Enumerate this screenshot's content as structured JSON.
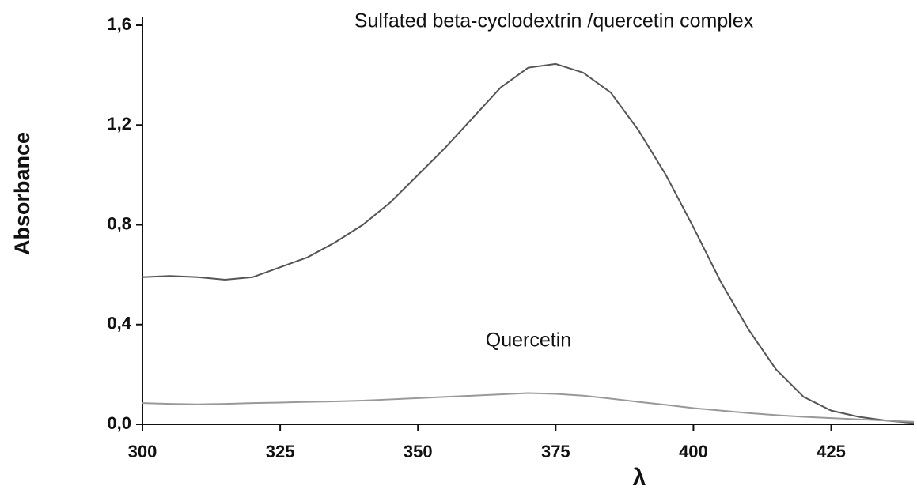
{
  "chart_data": {
    "type": "line",
    "y_label": "Absorbance",
    "x_label": "λ",
    "x": [
      300,
      305,
      310,
      315,
      320,
      325,
      330,
      335,
      340,
      345,
      350,
      355,
      360,
      365,
      370,
      375,
      380,
      385,
      390,
      395,
      400,
      405,
      410,
      415,
      420,
      425,
      430,
      435,
      440
    ],
    "series": [
      {
        "name": "Sulfated beta-cyclodextrin /quercetin complex",
        "color": "#555555",
        "values": [
          0.59,
          0.595,
          0.59,
          0.58,
          0.59,
          0.63,
          0.67,
          0.73,
          0.8,
          0.89,
          1.0,
          1.11,
          1.23,
          1.35,
          1.43,
          1.445,
          1.41,
          1.33,
          1.18,
          1.0,
          0.79,
          0.57,
          0.38,
          0.22,
          0.11,
          0.055,
          0.03,
          0.015,
          0.005
        ]
      },
      {
        "name": "Quercetin",
        "color": "#999999",
        "values": [
          0.085,
          0.082,
          0.08,
          0.082,
          0.085,
          0.087,
          0.09,
          0.092,
          0.095,
          0.1,
          0.105,
          0.11,
          0.115,
          0.12,
          0.125,
          0.122,
          0.115,
          0.103,
          0.09,
          0.078,
          0.065,
          0.055,
          0.045,
          0.037,
          0.03,
          0.025,
          0.02,
          0.015,
          0.01
        ]
      }
    ],
    "xlim": [
      300,
      440
    ],
    "ylim": [
      0,
      1.6
    ],
    "xticks": [
      300,
      325,
      350,
      375,
      400,
      425
    ],
    "yticks": [
      {
        "value": 0,
        "label": "0,0"
      },
      {
        "value": 0.4,
        "label": "0,4"
      },
      {
        "value": 0.8,
        "label": "0,8"
      },
      {
        "value": 1.2,
        "label": "1,2"
      },
      {
        "value": 1.6,
        "label": "1,6"
      }
    ]
  }
}
